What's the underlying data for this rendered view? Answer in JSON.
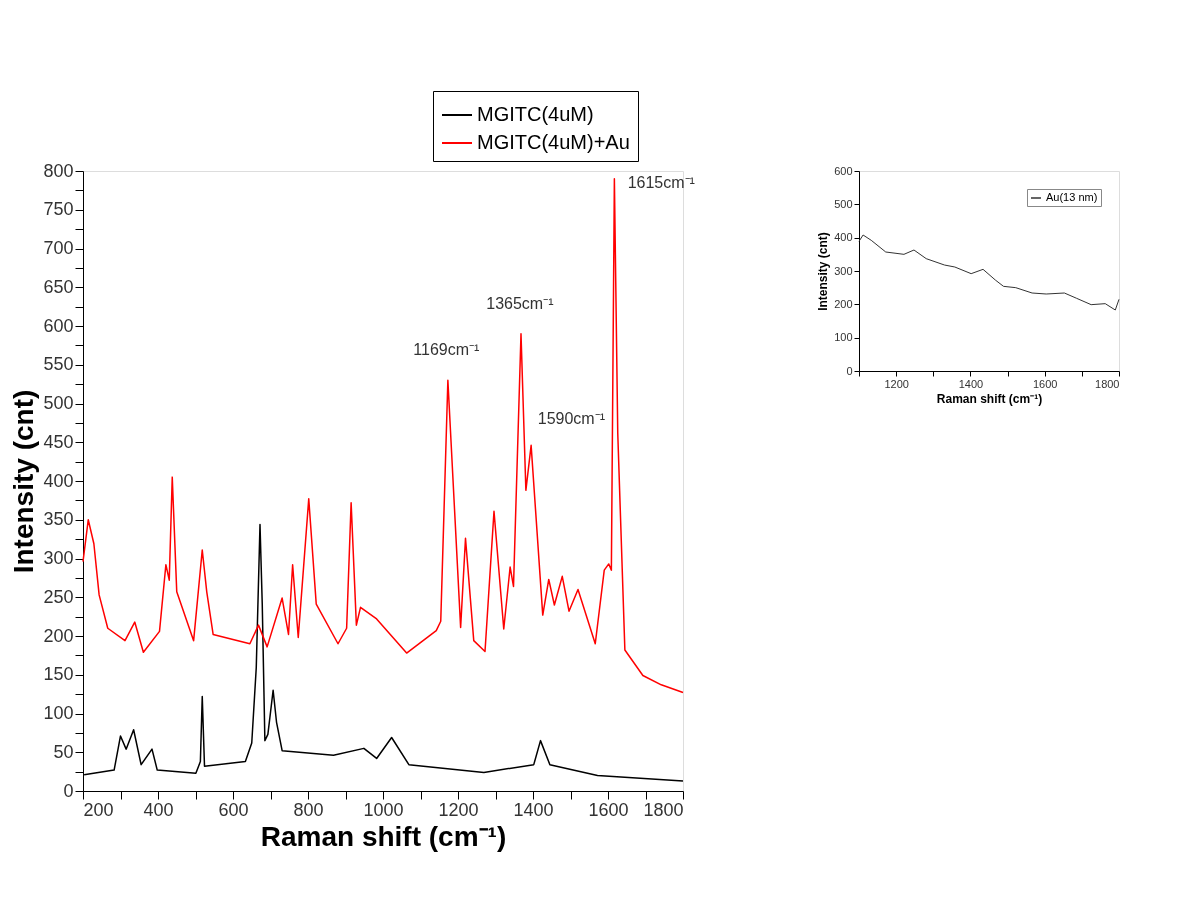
{
  "chart_data": [
    {
      "type": "line",
      "xlabel": "Raman shift (cm⁻¹)",
      "ylabel": "Intensity (cnt)",
      "xlim": [
        200,
        1800
      ],
      "ylim": [
        0,
        800
      ],
      "xticks": [
        200,
        {
          "value": 300,
          "label": null
        },
        400,
        {
          "value": 500,
          "label": null
        },
        600,
        {
          "value": 700,
          "label": null
        },
        800,
        {
          "value": 900,
          "label": null
        },
        1000,
        {
          "value": 1100,
          "label": null
        },
        1200,
        {
          "value": 1300,
          "label": null
        },
        1400,
        {
          "value": 1500,
          "label": null
        },
        1600,
        {
          "value": 1700,
          "label": null
        },
        1800
      ],
      "yticks": [
        0,
        {
          "value": 25,
          "label": null
        },
        50,
        {
          "value": 75,
          "label": null
        },
        100,
        {
          "value": 125,
          "label": null
        },
        150,
        {
          "value": 175,
          "label": null
        },
        200,
        {
          "value": 225,
          "label": null
        },
        250,
        {
          "value": 275,
          "label": null
        },
        300,
        {
          "value": 325,
          "label": null
        },
        350,
        {
          "value": 375,
          "label": null
        },
        400,
        {
          "value": 425,
          "label": null
        },
        450,
        {
          "value": 475,
          "label": null
        },
        500,
        {
          "value": 525,
          "label": null
        },
        550,
        {
          "value": 575,
          "label": null
        },
        600,
        {
          "value": 625,
          "label": null
        },
        650,
        {
          "value": 675,
          "label": null
        },
        700,
        {
          "value": 725,
          "label": null
        },
        750,
        {
          "value": 775,
          "label": null
        },
        800
      ],
      "grid": false,
      "legend": "top right",
      "series": [
        {
          "name": "MGITC(4uM)",
          "color": "#000000",
          "x": [
            203,
            283,
            300,
            315,
            335,
            355,
            384,
            398,
            501,
            513,
            518,
            524,
            633,
            650,
            662,
            672,
            678,
            685,
            693,
            707,
            716,
            731,
            868,
            949,
            983,
            1023,
            1069,
            1269,
            1402,
            1420,
            1445,
            1572,
            1800
          ],
          "values": [
            21,
            27,
            71,
            54,
            79,
            34,
            54,
            27,
            23,
            38,
            122,
            32,
            38,
            62,
            159,
            344,
            241,
            65,
            73,
            130,
            89,
            52,
            46,
            55,
            42,
            69,
            34,
            24,
            34,
            65,
            34,
            20,
            13
          ]
        },
        {
          "name": "MGITC(4uM)+Au",
          "color": "#ff0000",
          "x": [
            200,
            214,
            229,
            243,
            266,
            312,
            338,
            361,
            404,
            421,
            430,
            438,
            450,
            495,
            518,
            530,
            547,
            645,
            668,
            691,
            731,
            748,
            759,
            774,
            802,
            822,
            880,
            903,
            915,
            929,
            940,
            983,
            1063,
            1142,
            1154,
            1173,
            1207,
            1220,
            1242,
            1272,
            1296,
            1322,
            1339,
            1348,
            1368,
            1381,
            1395,
            1426,
            1442,
            1457,
            1478,
            1496,
            1520,
            1566,
            1590,
            1602,
            1609,
            1617,
            1626,
            1645,
            1693,
            1742,
            1800
          ],
          "values": [
            296,
            350,
            319,
            253,
            210,
            194,
            218,
            179,
            206,
            292,
            272,
            405,
            257,
            194,
            311,
            257,
            202,
            190,
            214,
            186,
            249,
            202,
            292,
            198,
            377,
            241,
            190,
            210,
            372,
            214,
            237,
            222,
            178,
            207,
            219,
            530,
            211,
            326,
            194,
            180,
            361,
            209,
            289,
            264,
            590,
            388,
            446,
            227,
            273,
            240,
            277,
            232,
            260,
            190,
            285,
            293,
            285,
            790,
            462,
            182,
            149,
            137,
            127
          ]
        }
      ],
      "annotations": [
        {
          "text": "1169cm⁻¹",
          "x": 1169,
          "y": 530
        },
        {
          "text": "1365cm⁻¹",
          "x": 1365,
          "y": 590
        },
        "1590cm⁻¹",
        {
          "text": "1615cm⁻¹",
          "x": 1615,
          "y": 790
        }
      ]
    },
    {
      "type": "line",
      "xlabel": "Raman shift (cm⁻¹)",
      "ylabel": "Intensity (cnt)",
      "xlim": [
        1100,
        1800
      ],
      "ylim": [
        0,
        600
      ],
      "xticks": [
        {
          "value": 1100,
          "label": null
        },
        1200,
        {
          "value": 1300,
          "label": null
        },
        1400,
        {
          "value": 1500,
          "label": null
        },
        1600,
        {
          "value": 1700,
          "label": null
        },
        1800
      ],
      "yticks": [
        0,
        100,
        200,
        300,
        400,
        500,
        600
      ],
      "grid": false,
      "legend": "top right",
      "series": [
        {
          "name": "Au(13 nm)",
          "color": "#333333",
          "x": [
            1100,
            1111,
            1133,
            1172,
            1221,
            1248,
            1281,
            1330,
            1358,
            1402,
            1434,
            1467,
            1489,
            1522,
            1566,
            1604,
            1653,
            1686,
            1725,
            1763,
            1790,
            1800
          ],
          "values": [
            389,
            408,
            392,
            357,
            350,
            363,
            337,
            318,
            312,
            292,
            305,
            273,
            254,
            250,
            234,
            231,
            234,
            218,
            199,
            202,
            183,
            215
          ]
        }
      ]
    }
  ]
}
